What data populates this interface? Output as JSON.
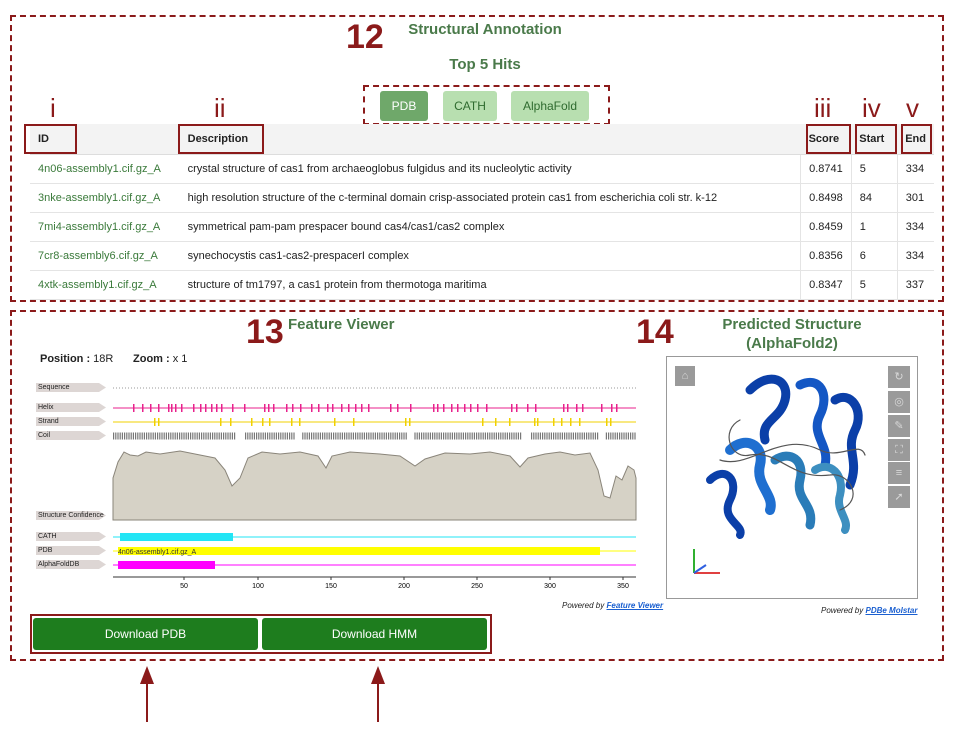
{
  "annotations": {
    "section_12": "12",
    "section_13": "13",
    "section_14": "14",
    "col_i": "i",
    "col_ii": "ii",
    "col_iii": "iii",
    "col_iv": "iv",
    "col_v": "v"
  },
  "structural": {
    "title": "Structural Annotation",
    "subtitle": "Top 5 Hits",
    "tabs": [
      "PDB",
      "CATH",
      "AlphaFold"
    ],
    "active_tab": "PDB",
    "columns": [
      "ID",
      "Description",
      "Score",
      "Start",
      "End"
    ],
    "rows": [
      {
        "id": "4n06-assembly1.cif.gz_A",
        "description": "crystal structure of cas1 from archaeoglobus fulgidus and its nucleolytic activity",
        "score": "0.8741",
        "start": "5",
        "end": "334"
      },
      {
        "id": "3nke-assembly1.cif.gz_A",
        "description": "high resolution structure of the c-terminal domain crisp-associated protein cas1 from escherichia coli str. k-12",
        "score": "0.8498",
        "start": "84",
        "end": "301"
      },
      {
        "id": "7mi4-assembly1.cif.gz_A",
        "description": "symmetrical pam-pam prespacer bound cas4/cas1/cas2 complex",
        "score": "0.8459",
        "start": "1",
        "end": "334"
      },
      {
        "id": "7cr8-assembly6.cif.gz_A",
        "description": "synechocystis cas1-cas2-prespacerI complex",
        "score": "0.8356",
        "start": "6",
        "end": "334"
      },
      {
        "id": "4xtk-assembly1.cif.gz_A",
        "description": "structure of tm1797, a cas1 protein from thermotoga maritima",
        "score": "0.8347",
        "start": "5",
        "end": "337"
      }
    ]
  },
  "feature_viewer": {
    "title": "Feature Viewer",
    "position_label": "Position :",
    "position_value": "18R",
    "zoom_label": "Zoom :",
    "zoom_value": "x 1",
    "tracks": [
      "Sequence",
      "Helix",
      "Strand",
      "Coil",
      "Structure Confidence",
      "CATH",
      "PDB",
      "AlphaFoldDB"
    ],
    "pdb_bar_label": "4n06-assembly1.cif.gz_A",
    "axis_ticks": [
      "50",
      "100",
      "150",
      "200",
      "250",
      "300",
      "350"
    ],
    "powered_prefix": "Powered by",
    "powered_link": "Feature Viewer",
    "colors": {
      "helix": "#e8218c",
      "strand": "#f0d000",
      "coil": "#777777",
      "cath": "#22e5f5",
      "pdb": "#ffff00",
      "alphafold": "#ff00ff"
    }
  },
  "predicted": {
    "title_line1": "Predicted Structure",
    "title_line2": "(AlphaFold2)",
    "powered_prefix": "Powered by",
    "powered_link": "PDBe Molstar"
  },
  "downloads": {
    "pdb": "Download PDB",
    "hmm": "Download HMM"
  }
}
